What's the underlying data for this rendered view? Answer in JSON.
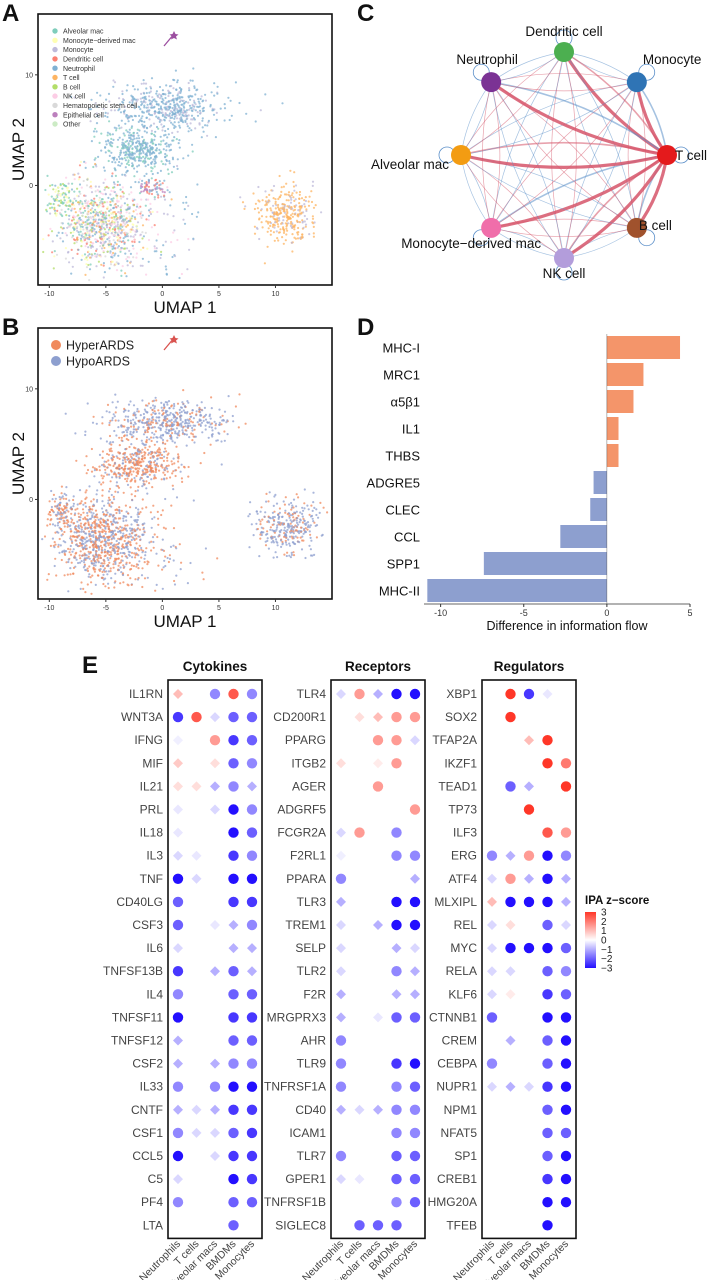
{
  "panel_letters": {
    "A": "A",
    "B": "B",
    "C": "C",
    "D": "D",
    "E": "E"
  },
  "chart_data": [
    {
      "panel": "A",
      "type": "scatter",
      "xlabel": "UMAP 1",
      "ylabel": "UMAP 2",
      "xticks": [
        -10,
        -5,
        0,
        5,
        10
      ],
      "yticks": [
        0,
        10
      ],
      "xlim": [
        -11,
        15
      ],
      "ylim": [
        -9,
        15.5
      ],
      "legend_position": "top-left",
      "series": [
        {
          "name": "Alveolar mac",
          "color": "#7fcdbb"
        },
        {
          "name": "Monocyte−derived mac",
          "color": "#ffffb3"
        },
        {
          "name": "Monocyte",
          "color": "#bebada"
        },
        {
          "name": "Dendritic cell",
          "color": "#fb8072"
        },
        {
          "name": "Neutrophil",
          "color": "#80b1d3"
        },
        {
          "name": "T cell",
          "color": "#fdb462"
        },
        {
          "name": "B cell",
          "color": "#b3de69"
        },
        {
          "name": "NK cell",
          "color": "#fccde5"
        },
        {
          "name": "Hematopoietic stem cell",
          "color": "#d9d9d9"
        },
        {
          "name": "Epithelial cell",
          "color": "#bc80bd"
        },
        {
          "name": "Other",
          "color": "#ccebc5"
        }
      ]
    },
    {
      "panel": "B",
      "type": "scatter",
      "xlabel": "UMAP 1",
      "ylabel": "UMAP 2",
      "xticks": [
        -10,
        -5,
        0,
        5,
        10
      ],
      "yticks": [
        0,
        10
      ],
      "xlim": [
        -11,
        15
      ],
      "ylim": [
        -9,
        15.5
      ],
      "legend_position": "top-left",
      "series": [
        {
          "name": "HyperARDS",
          "color": "#f08a5d"
        },
        {
          "name": "HypoARDS",
          "color": "#8d9fcf"
        }
      ]
    },
    {
      "panel": "C",
      "type": "network",
      "nodes": [
        {
          "name": "Dendritic cell",
          "color": "#4caf50"
        },
        {
          "name": "Monocyte",
          "color": "#2f74b5"
        },
        {
          "name": "T cell",
          "color": "#e41a1c"
        },
        {
          "name": "B cell",
          "color": "#a0522d"
        },
        {
          "name": "NK cell",
          "color": "#b39ddb"
        },
        {
          "name": "Monocyte−derived mac",
          "color": "#f06eaa"
        },
        {
          "name": "Alveolar mac",
          "color": "#f39c12"
        },
        {
          "name": "Neutrophil",
          "color": "#7b3294"
        }
      ]
    },
    {
      "panel": "D",
      "type": "bar",
      "orientation": "horizontal",
      "categories": [
        "MHC-I",
        "MRC1",
        "α5β1",
        "IL1",
        "THBS",
        "ADGRE5",
        "CLEC",
        "CCL",
        "SPP1",
        "MHC-II"
      ],
      "values": [
        4.4,
        2.2,
        1.6,
        0.7,
        0.7,
        -0.8,
        -1.0,
        -2.8,
        -7.4,
        -10.8
      ],
      "xlabel": "Difference in information flow",
      "xticks": [
        -10,
        -5,
        0,
        5
      ],
      "xlim": [
        -11,
        5
      ],
      "colors": {
        "positive": "#f4956a",
        "negative": "#8d9fcf"
      }
    },
    {
      "panel": "E",
      "type": "heatmap",
      "legend": {
        "title": "IPA z−score",
        "ticks": [
          "3",
          "2",
          "1",
          "0",
          "−1",
          "−2",
          "−3"
        ],
        "range": [
          -3,
          3
        ]
      },
      "groups": [
        {
          "title": "Cytokines",
          "columns": [
            "Neutrophils",
            "T cells",
            "Alveolar macs",
            "BMDMs",
            "Monocytes"
          ],
          "rows": [
            {
              "label": "IL1RN",
              "values": [
                1,
                null,
                -1.5,
                2.5,
                -1.5
              ]
            },
            {
              "label": "WNT3A",
              "values": [
                -2.5,
                2.5,
                -0.5,
                -2,
                -2
              ]
            },
            {
              "label": "IFNG",
              "values": [
                -0.2,
                null,
                1.5,
                -2.5,
                -2
              ]
            },
            {
              "label": "MIF",
              "values": [
                0.8,
                null,
                0.5,
                -2,
                -1.5
              ]
            },
            {
              "label": "IL21",
              "values": [
                0.5,
                0.5,
                -1,
                -1.5,
                -1
              ]
            },
            {
              "label": "PRL",
              "values": [
                -0.3,
                null,
                -0.5,
                -3,
                -1.5
              ]
            },
            {
              "label": "IL18",
              "values": [
                -0.3,
                null,
                null,
                -3,
                -2
              ]
            },
            {
              "label": "IL3",
              "values": [
                -0.5,
                -0.3,
                null,
                -2.5,
                -1.5
              ]
            },
            {
              "label": "TNF",
              "values": [
                -3,
                -0.5,
                null,
                -3,
                -3
              ]
            },
            {
              "label": "CD40LG",
              "values": [
                -2,
                null,
                null,
                -2.5,
                -2.5
              ]
            },
            {
              "label": "CSF3",
              "values": [
                -2,
                null,
                -0.3,
                -1,
                -1.5
              ]
            },
            {
              "label": "IL6",
              "values": [
                -0.5,
                null,
                null,
                -1,
                -1
              ]
            },
            {
              "label": "TNFSF13B",
              "values": [
                -2.5,
                null,
                -1,
                -2,
                -1
              ]
            },
            {
              "label": "IL4",
              "values": [
                -1.5,
                null,
                null,
                -2,
                -2
              ]
            },
            {
              "label": "TNFSF11",
              "values": [
                -3,
                null,
                null,
                -2.5,
                -2.5
              ]
            },
            {
              "label": "TNFSF12",
              "values": [
                -1,
                null,
                null,
                -2,
                -2
              ]
            },
            {
              "label": "CSF2",
              "values": [
                -1,
                null,
                -1,
                -1.5,
                -1.5
              ]
            },
            {
              "label": "IL33",
              "values": [
                -1.5,
                null,
                -1.5,
                -3,
                -3
              ]
            },
            {
              "label": "CNTF",
              "values": [
                -1,
                -0.5,
                -1,
                -2.5,
                -2.5
              ]
            },
            {
              "label": "CSF1",
              "values": [
                -1.5,
                -0.5,
                -0.5,
                -2,
                -2.5
              ]
            },
            {
              "label": "CCL5",
              "values": [
                -3,
                null,
                -0.5,
                -2.5,
                -2.5
              ]
            },
            {
              "label": "C5",
              "values": [
                -0.5,
                null,
                null,
                -3,
                -2.5
              ]
            },
            {
              "label": "PF4",
              "values": [
                -1.5,
                null,
                null,
                -2,
                -2
              ]
            },
            {
              "label": "LTA",
              "values": [
                null,
                null,
                null,
                -2,
                null
              ]
            }
          ]
        },
        {
          "title": "Receptors",
          "columns": [
            "Neutrophils",
            "T cells",
            "Alveolar macs",
            "BMDMs",
            "Monocytes"
          ],
          "rows": [
            {
              "label": "TLR4",
              "values": [
                -0.5,
                1.5,
                -1,
                -3,
                -3
              ]
            },
            {
              "label": "CD200R1",
              "values": [
                null,
                0.5,
                1,
                1.5,
                1.5
              ]
            },
            {
              "label": "PPARG",
              "values": [
                null,
                null,
                1.5,
                1.5,
                -0.5
              ]
            },
            {
              "label": "ITGB2",
              "values": [
                0.5,
                null,
                0.3,
                1.5,
                null
              ]
            },
            {
              "label": "AGER",
              "values": [
                null,
                null,
                1.5,
                null,
                null
              ]
            },
            {
              "label": "ADGRF5",
              "values": [
                null,
                null,
                null,
                null,
                1.5
              ]
            },
            {
              "label": "FCGR2A",
              "values": [
                -0.5,
                1.5,
                null,
                -1.5,
                null
              ]
            },
            {
              "label": "F2RL1",
              "values": [
                -0.2,
                null,
                null,
                -1.5,
                -1.5
              ]
            },
            {
              "label": "PPARA",
              "values": [
                -1.5,
                null,
                null,
                null,
                -1
              ]
            },
            {
              "label": "TLR3",
              "values": [
                -1,
                null,
                null,
                -3,
                -3
              ]
            },
            {
              "label": "TREM1",
              "values": [
                -0.5,
                null,
                -1,
                -3,
                -3
              ]
            },
            {
              "label": "SELP",
              "values": [
                -0.5,
                null,
                null,
                -1,
                -0.5
              ]
            },
            {
              "label": "TLR2",
              "values": [
                -0.5,
                null,
                null,
                -1.5,
                -1
              ]
            },
            {
              "label": "F2R",
              "values": [
                -1,
                null,
                null,
                -1,
                -1
              ]
            },
            {
              "label": "MRGPRX3",
              "values": [
                -1,
                null,
                -0.3,
                -2,
                -2
              ]
            },
            {
              "label": "AHR",
              "values": [
                -1.5,
                null,
                null,
                null,
                null
              ]
            },
            {
              "label": "TLR9",
              "values": [
                -1.5,
                null,
                null,
                -2.5,
                -3
              ]
            },
            {
              "label": "TNFRSF1A",
              "values": [
                -1.5,
                null,
                null,
                -1.5,
                -2
              ]
            },
            {
              "label": "CD40",
              "values": [
                -1,
                -0.5,
                -1,
                -1.5,
                -1.5
              ]
            },
            {
              "label": "ICAM1",
              "values": [
                null,
                null,
                null,
                -1.5,
                -1.5
              ]
            },
            {
              "label": "TLR7",
              "values": [
                -1.5,
                null,
                null,
                -2,
                -2
              ]
            },
            {
              "label": "GPER1",
              "values": [
                -0.5,
                -0.3,
                null,
                -2,
                -2
              ]
            },
            {
              "label": "TNFRSF1B",
              "values": [
                null,
                null,
                null,
                -1.5,
                -2
              ]
            },
            {
              "label": "SIGLEC8",
              "values": [
                null,
                -2,
                -2,
                -2,
                null
              ]
            }
          ]
        },
        {
          "title": "Regulators",
          "columns": [
            "Neutrophils",
            "T cells",
            "Alveolar macs",
            "BMDMs",
            "Monocytes"
          ],
          "rows": [
            {
              "label": "XBP1",
              "values": [
                null,
                3,
                -2.5,
                -0.3,
                null
              ]
            },
            {
              "label": "SOX2",
              "values": [
                null,
                3,
                null,
                null,
                null
              ]
            },
            {
              "label": "TFAP2A",
              "values": [
                null,
                null,
                1,
                3,
                null
              ]
            },
            {
              "label": "IKZF1",
              "values": [
                null,
                null,
                null,
                3,
                2
              ]
            },
            {
              "label": "TEAD1",
              "values": [
                null,
                -2,
                -1,
                null,
                3
              ]
            },
            {
              "label": "TP73",
              "values": [
                null,
                null,
                3,
                null,
                null
              ]
            },
            {
              "label": "ILF3",
              "values": [
                null,
                null,
                null,
                2.5,
                1.5
              ]
            },
            {
              "label": "ERG",
              "values": [
                -1.5,
                -1,
                1.5,
                -3,
                -1.5
              ]
            },
            {
              "label": "ATF4",
              "values": [
                -0.5,
                1.5,
                -1,
                -3,
                -1
              ]
            },
            {
              "label": "MLXIPL",
              "values": [
                1,
                -3,
                -3,
                -3,
                -1
              ]
            },
            {
              "label": "REL",
              "values": [
                -0.5,
                0.5,
                null,
                -2,
                -0.5
              ]
            },
            {
              "label": "MYC",
              "values": [
                -0.5,
                -3,
                -3,
                -3,
                -2
              ]
            },
            {
              "label": "RELA",
              "values": [
                -0.5,
                -0.5,
                null,
                -2,
                -1.5
              ]
            },
            {
              "label": "KLF6",
              "values": [
                -0.5,
                0.3,
                null,
                -2.5,
                -2
              ]
            },
            {
              "label": "CTNNB1",
              "values": [
                -2,
                null,
                null,
                -3,
                -3
              ]
            },
            {
              "label": "CREM",
              "values": [
                null,
                -1,
                null,
                -2,
                -3
              ]
            },
            {
              "label": "CEBPA",
              "values": [
                -1.5,
                null,
                null,
                -2,
                -3
              ]
            },
            {
              "label": "NUPR1",
              "values": [
                -0.5,
                -1,
                -0.5,
                -2.5,
                -3
              ]
            },
            {
              "label": "NPM1",
              "values": [
                null,
                null,
                null,
                -2,
                -3
              ]
            },
            {
              "label": "NFAT5",
              "values": [
                null,
                null,
                null,
                -2,
                -2
              ]
            },
            {
              "label": "SP1",
              "values": [
                null,
                null,
                null,
                -2,
                -3
              ]
            },
            {
              "label": "CREB1",
              "values": [
                null,
                null,
                null,
                -2.5,
                -3
              ]
            },
            {
              "label": "HMG20A",
              "values": [
                null,
                null,
                null,
                -3,
                -3
              ]
            },
            {
              "label": "TFEB",
              "values": [
                null,
                null,
                null,
                -3,
                null
              ]
            }
          ]
        }
      ]
    }
  ]
}
